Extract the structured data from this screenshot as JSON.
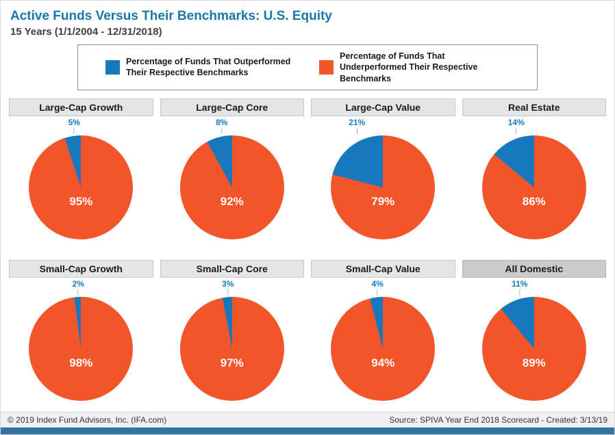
{
  "header": {
    "title": "Active Funds Versus Their Benchmarks: U.S. Equity",
    "subtitle": "15 Years (1/1/2004 - 12/31/2018)"
  },
  "legend": {
    "outperformed_label": "Percentage of Funds That Outperformed Their Respective Benchmarks",
    "underperformed_label": "Percentage of Funds That Underperformed Their Respective Benchmarks"
  },
  "colors": {
    "outperformed_blue": "#1878BE",
    "underperformed_orange": "#F2552A",
    "title_blue": "#1878A8",
    "bottom_bar_blue": "#3173A3"
  },
  "chart_data": {
    "type": "pie",
    "legend_position": "top",
    "charts": [
      {
        "label": "Large-Cap Growth",
        "outperformed_pct": 5,
        "underperformed_pct": 95,
        "outperformed_display": "5%",
        "underperformed_display": "95%",
        "highlighted": false
      },
      {
        "label": "Large-Cap Core",
        "outperformed_pct": 8,
        "underperformed_pct": 92,
        "outperformed_display": "8%",
        "underperformed_display": "92%",
        "highlighted": false
      },
      {
        "label": "Large-Cap Value",
        "outperformed_pct": 21,
        "underperformed_pct": 79,
        "outperformed_display": "21%",
        "underperformed_display": "79%",
        "highlighted": false
      },
      {
        "label": "Real Estate",
        "outperformed_pct": 14,
        "underperformed_pct": 86,
        "outperformed_display": "14%",
        "underperformed_display": "86%",
        "highlighted": false
      },
      {
        "label": "Small-Cap Growth",
        "outperformed_pct": 2,
        "underperformed_pct": 98,
        "outperformed_display": "2%",
        "underperformed_display": "98%",
        "highlighted": false
      },
      {
        "label": "Small-Cap Core",
        "outperformed_pct": 3,
        "underperformed_pct": 97,
        "outperformed_display": "3%",
        "underperformed_display": "97%",
        "highlighted": false
      },
      {
        "label": "Small-Cap Value",
        "outperformed_pct": 4,
        "underperformed_pct": 94,
        "outperformed_display": "4%",
        "underperformed_display": "94%",
        "highlighted": false
      },
      {
        "label": "All Domestic",
        "outperformed_pct": 11,
        "underperformed_pct": 89,
        "outperformed_display": "11%",
        "underperformed_display": "89%",
        "highlighted": true
      }
    ]
  },
  "footer": {
    "left": "© 2019 Index Fund Advisors, Inc. (IFA.com)",
    "right": "Source: SPIVA Year End 2018 Scorecard - Created: 3/13/19"
  }
}
